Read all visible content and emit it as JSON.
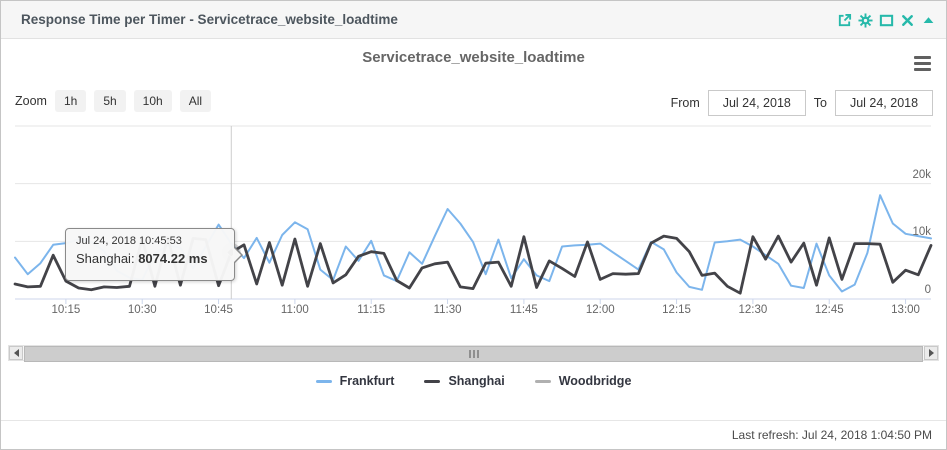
{
  "widget": {
    "header": {
      "title": "Response Time per Timer - Servicetrace_website_loadtime",
      "accent_color": "#26b9aa",
      "icons": [
        "open-new-window",
        "settings",
        "maximize",
        "close",
        "collapse"
      ]
    },
    "toolbar": {
      "zoom_label": "Zoom",
      "zoom_buttons": [
        "1h",
        "5h",
        "10h",
        "All"
      ],
      "from_label": "From",
      "from_value": "Jul 24, 2018",
      "to_label": "To",
      "to_value": "Jul 24, 2018"
    },
    "footer": {
      "last_refresh": "Last refresh: Jul 24, 2018 1:04:50 PM"
    }
  },
  "chart_data": {
    "type": "line",
    "title": "Servicetrace_website_loadtime",
    "ylabel": "",
    "xlabel": "",
    "ylim": [
      0,
      30000
    ],
    "y_unit": "ms",
    "grid": true,
    "legend_position": "bottom",
    "x_start_time": "10:05",
    "x_end_time": "13:05",
    "x_tick_labels": [
      "10:15",
      "10:30",
      "10:45",
      "11:00",
      "11:15",
      "11:30",
      "11:45",
      "12:00",
      "12:15",
      "12:30",
      "12:45",
      "13:00"
    ],
    "x_tick_minutes": [
      10,
      25,
      40,
      55,
      70,
      85,
      100,
      115,
      130,
      145,
      160,
      175
    ],
    "x_total_minutes": 180,
    "y_ticks": [
      {
        "value": 0,
        "label": "0"
      },
      {
        "value": 10000,
        "label": "10k"
      },
      {
        "value": 20000,
        "label": "20k"
      }
    ],
    "series": [
      {
        "name": "Frankfurt",
        "color": "#7cb5ec",
        "width": 2,
        "values": [
          7200,
          4300,
          6200,
          9400,
          9700,
          10300,
          9900,
          8300,
          4900,
          3700,
          3300,
          7900,
          9300,
          8900,
          5300,
          9100,
          12900,
          9600,
          7100,
          10600,
          6300,
          11100,
          13300,
          12100,
          5100,
          3300,
          9100,
          6600,
          10100,
          4100,
          3100,
          8100,
          6100,
          10900,
          15600,
          13100,
          9900,
          4300,
          10300,
          3600,
          6900,
          4100,
          3100,
          9100,
          9300,
          9400,
          9600,
          8100,
          6600,
          5100,
          9900,
          8600,
          4600,
          2100,
          1600,
          9800,
          10000,
          10300,
          9100,
          7600,
          6100,
          2300,
          1900,
          9600,
          4100,
          1300,
          2500,
          8000,
          18000,
          13100,
          11300,
          10900,
          10500
        ]
      },
      {
        "name": "Shanghai",
        "color": "#434348",
        "width": 2.8,
        "values": [
          2600,
          2100,
          2200,
          7600,
          3100,
          1900,
          1600,
          2100,
          2000,
          2200,
          10400,
          2200,
          10600,
          2400,
          10500,
          10300,
          2300,
          8074.22,
          9400,
          2600,
          9800,
          2400,
          10400,
          2200,
          9600,
          2800,
          4200,
          7400,
          8200,
          7900,
          3200,
          1900,
          5400,
          6100,
          6400,
          2100,
          1800,
          6200,
          6400,
          2200,
          10800,
          2000,
          6600,
          5300,
          3900,
          9900,
          3400,
          4400,
          4300,
          4400,
          9700,
          10900,
          10500,
          8200,
          4100,
          4500,
          2200,
          1000,
          10800,
          6900,
          10900,
          6400,
          9700,
          2400,
          10600,
          3400,
          9600,
          9600,
          9500,
          2900,
          5000,
          4200,
          9300
        ]
      },
      {
        "name": "Woodbridge",
        "color": "#b0b0b0",
        "width": 2,
        "values": []
      }
    ],
    "tooltip": {
      "datetime": "Jul 24, 2018 10:45:53",
      "series_label": "Shanghai:",
      "value_label": "8074.22 ms",
      "series_index": 1,
      "point_index": 17,
      "value": 8074.22
    }
  }
}
